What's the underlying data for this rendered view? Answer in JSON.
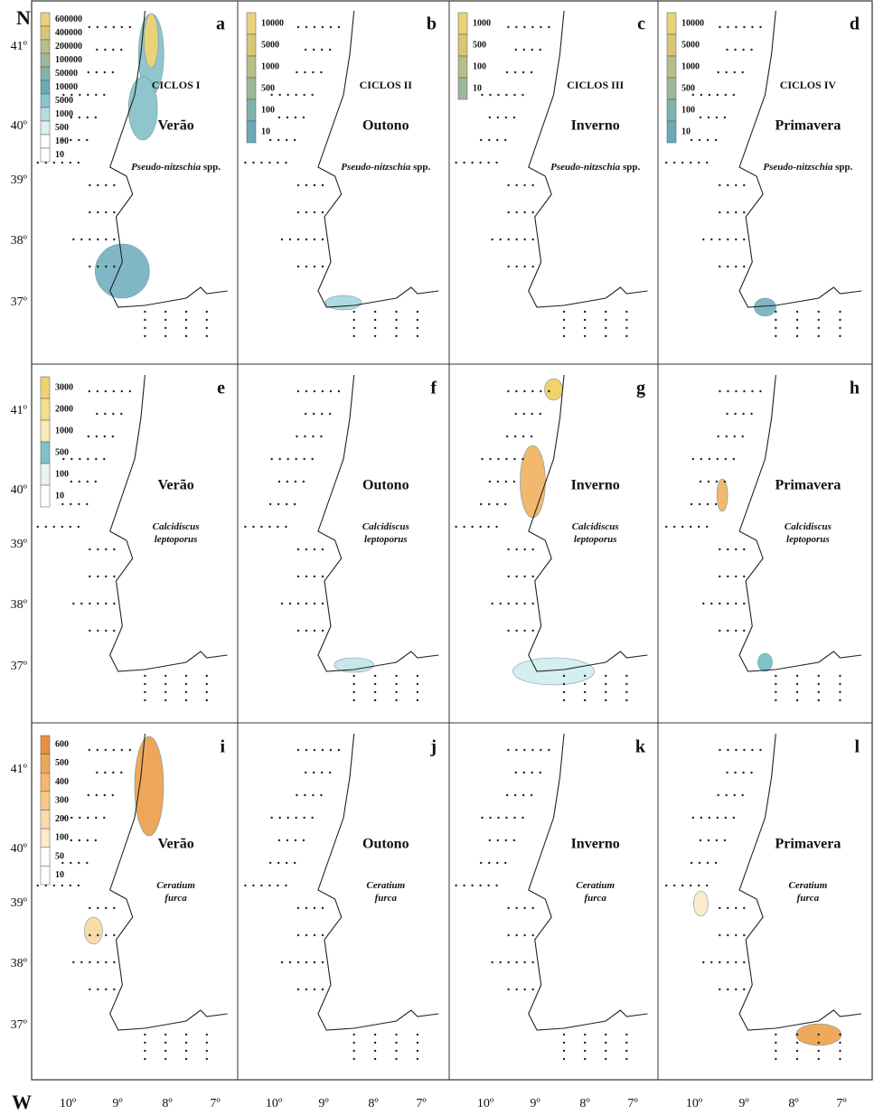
{
  "axes": {
    "north": "N",
    "west": "W",
    "latitude_labels": [
      "41º",
      "40º",
      "39º",
      "38º",
      "37º"
    ],
    "longitude_labels": [
      "10º",
      "9º",
      "8º",
      "7º"
    ]
  },
  "panels": [
    {
      "letter": "a",
      "cycle": "CICLOS I",
      "season": "Verão",
      "species": [
        "Pseudo-nitzschia"
      ],
      "species_suffix": "spp.",
      "legend": [
        600000,
        400000,
        200000,
        100000,
        50000,
        10000,
        5000,
        1000,
        500,
        100,
        10
      ]
    },
    {
      "letter": "b",
      "cycle": "CICLOS II",
      "season": "Outono",
      "species": [
        "Pseudo-nitzschia"
      ],
      "species_suffix": "spp.",
      "legend": [
        10000,
        5000,
        1000,
        500,
        100,
        10
      ]
    },
    {
      "letter": "c",
      "cycle": "CICLOS III",
      "season": "Inverno",
      "species": [
        "Pseudo-nitzschia"
      ],
      "species_suffix": "spp.",
      "legend": [
        1000,
        500,
        100,
        10
      ]
    },
    {
      "letter": "d",
      "cycle": "CICLOS IV",
      "season": "Primavera",
      "species": [
        "Pseudo-nitzschia"
      ],
      "species_suffix": "spp.",
      "legend": [
        10000,
        5000,
        1000,
        500,
        100,
        10
      ]
    },
    {
      "letter": "e",
      "season": "Verão",
      "species": [
        "Calcidiscus",
        "leptoporus"
      ],
      "legend": [
        3000,
        2000,
        1000,
        500,
        100,
        10
      ]
    },
    {
      "letter": "f",
      "season": "Outono",
      "species": [
        "Calcidiscus",
        "leptoporus"
      ]
    },
    {
      "letter": "g",
      "season": "Inverno",
      "species": [
        "Calcidiscus",
        "leptoporus"
      ]
    },
    {
      "letter": "h",
      "season": "Primavera",
      "species": [
        "Calcidiscus",
        "leptoporus"
      ]
    },
    {
      "letter": "i",
      "season": "Verão",
      "species": [
        "Ceratium",
        "furca"
      ],
      "legend": [
        600,
        500,
        400,
        300,
        200,
        100,
        50,
        10
      ]
    },
    {
      "letter": "j",
      "season": "Outono",
      "species": [
        "Ceratium",
        "furca"
      ]
    },
    {
      "letter": "k",
      "season": "Inverno",
      "species": [
        "Ceratium",
        "furca"
      ]
    },
    {
      "letter": "l",
      "season": "Primavera",
      "species": [
        "Ceratium",
        "furca"
      ]
    }
  ]
}
